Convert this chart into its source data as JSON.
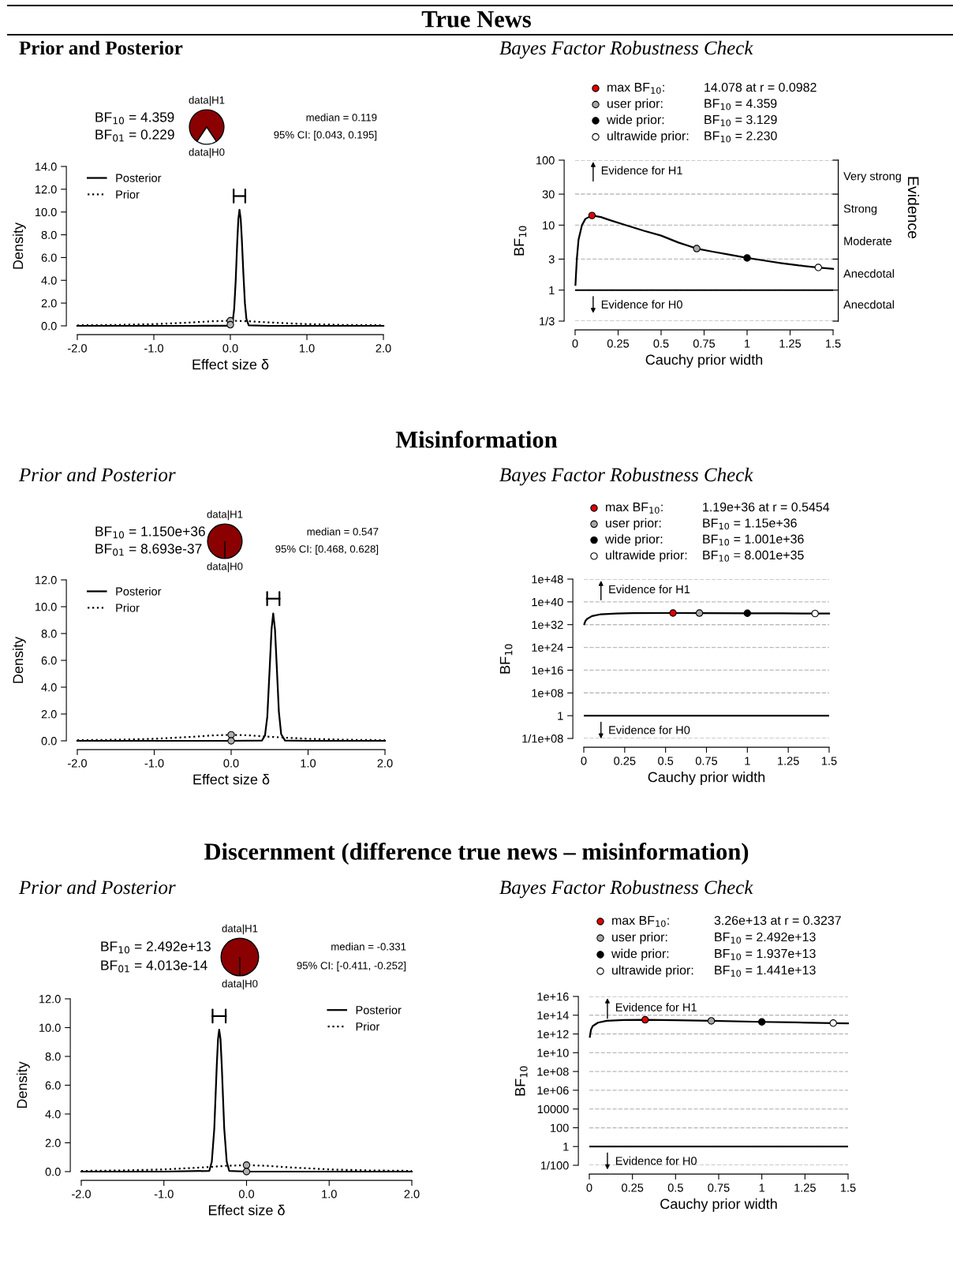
{
  "chart_data": [
    {
      "type": "other",
      "title": "True News"
    },
    {
      "type": "line",
      "title": "Prior and Posterior",
      "xlabel": "Effect size δ",
      "ylabel": "Density",
      "xlim": [
        -2,
        2
      ],
      "ylim": [
        0,
        14
      ],
      "xticks": [
        {
          "value": -2,
          "label": "-2.0"
        },
        {
          "value": -1,
          "label": "-1.0"
        },
        {
          "value": 0,
          "label": "0.0"
        },
        {
          "value": 1,
          "label": "1.0"
        },
        {
          "value": 2,
          "label": "2.0"
        }
      ],
      "yticks": [
        {
          "value": 0,
          "label": "0.0"
        },
        {
          "value": 2,
          "label": "2.0"
        },
        {
          "value": 4,
          "label": "4.0"
        },
        {
          "value": 6,
          "label": "6.0"
        },
        {
          "value": 8,
          "label": "8.0"
        },
        {
          "value": 10,
          "label": "10.0"
        },
        {
          "value": 12,
          "label": "12.0"
        },
        {
          "value": 14,
          "label": "14.0"
        }
      ],
      "legend": "top left",
      "grid": false,
      "annotations": [
        "BF$_{10}$ = 4.359",
        "BF$_{01}$ = 0.229",
        "median = 0.119",
        "95% CI: [0.043, 0.195]"
      ],
      "series": [
        {
          "name": "Posterior",
          "type": "line",
          "line_style": "solid",
          "color": "#000000",
          "x": [
            -2,
            -1,
            -0.5,
            0,
            0.03,
            0.05,
            0.07,
            0.09,
            0.105,
            0.119,
            0.135,
            0.15,
            0.17,
            0.19,
            0.21,
            0.24,
            0.5,
            1,
            2
          ],
          "values": [
            0,
            0,
            0,
            0.01,
            0.35,
            1.5,
            4.0,
            7.4,
            9.4,
            10.2,
            9.4,
            7.6,
            4.6,
            2.0,
            0.6,
            0.05,
            0,
            0,
            0
          ]
        },
        {
          "name": "Prior",
          "type": "line",
          "line_style": "dotted",
          "color": "#000000",
          "x": [
            -2,
            -1.5,
            -1,
            -0.5,
            -0.25,
            0,
            0.25,
            0.5,
            1,
            1.5,
            2
          ],
          "values": [
            0.05,
            0.08,
            0.15,
            0.3,
            0.4,
            0.45,
            0.4,
            0.3,
            0.15,
            0.08,
            0.05
          ]
        },
        {
          "type": "scatter",
          "marker": "circle",
          "color": "#b0b0b0",
          "x": [
            0,
            0
          ],
          "values": [
            0.45,
            0.1
          ]
        },
        {
          "type": "line",
          "marker": "none",
          "color": "#000000",
          "x": [
            0.043,
            0.195
          ],
          "values": [
            11.4,
            11.4
          ]
        }
      ]
    },
    {
      "type": "pie",
      "categories": [
        "data|H1",
        "data|H0"
      ],
      "values": [
        81.3,
        18.7
      ],
      "colors": [
        "#8b0000",
        "#ffffff"
      ]
    },
    {
      "type": "line",
      "log": "y",
      "title": "Bayes Factor Robustness Check",
      "xlabel": "Cauchy prior width",
      "ylabel": "BF$_{10}$",
      "y2label": "Evidence",
      "xlim": [
        0,
        1.5
      ],
      "ylim": [
        0.3333,
        100
      ],
      "xticks": [
        0,
        0.25,
        0.5,
        0.75,
        1,
        1.25,
        1.5
      ],
      "yticks": [
        {
          "value": 0.3333,
          "label": "1/3"
        },
        1,
        3,
        10,
        30,
        100
      ],
      "grid": "y",
      "legend": "top",
      "ref_lines": [
        {
          "axis": "y",
          "value": 1,
          "color": "#000000"
        }
      ],
      "annotations": [
        "Evidence for H1",
        "Evidence for H0",
        "14.078 at r = 0.0982",
        "BF$_{10}$ = 4.359",
        "BF$_{10}$ = 3.129",
        "BF$_{10}$ = 2.230",
        "Anecdotal",
        "Anecdotal",
        "Moderate",
        "Strong",
        "Very strong"
      ],
      "series": [
        {
          "type": "line",
          "color": "#000000",
          "x": [
            0.002,
            0.01,
            0.02,
            0.04,
            0.06,
            0.0982,
            0.15,
            0.2,
            0.3,
            0.4,
            0.5,
            0.6,
            0.707,
            0.8,
            0.9,
            1,
            1.1,
            1.2,
            1.3,
            1.414,
            1.5
          ],
          "values": [
            1.2,
            3,
            6,
            10,
            12.5,
            14.078,
            13.3,
            12.0,
            9.9,
            8.2,
            6.9,
            5.4,
            4.359,
            3.9,
            3.5,
            3.129,
            2.85,
            2.6,
            2.4,
            2.23,
            2.12
          ]
        },
        {
          "name": "max BF$_{10}$:",
          "type": "scatter",
          "color": "#e00000",
          "x": [
            0.0982
          ],
          "values": [
            14.078
          ]
        },
        {
          "name": "user prior:",
          "type": "scatter",
          "color": "#a8a8a8",
          "x": [
            0.707
          ],
          "values": [
            4.359
          ]
        },
        {
          "name": "wide prior:",
          "type": "scatter",
          "color": "#000000",
          "x": [
            1
          ],
          "values": [
            3.129
          ]
        },
        {
          "name": "ultrawide prior:",
          "type": "scatter",
          "color": "#ffffff",
          "x": [
            1.414
          ],
          "values": [
            2.23
          ]
        }
      ]
    },
    {
      "type": "other",
      "title": "Misinformation"
    },
    {
      "type": "line",
      "title": "Prior and Posterior",
      "xlabel": "Effect size δ",
      "ylabel": "Density",
      "xlim": [
        -2,
        2
      ],
      "ylim": [
        0,
        12
      ],
      "xticks": [
        {
          "value": -2,
          "label": "-2.0"
        },
        {
          "value": -1,
          "label": "-1.0"
        },
        {
          "value": 0,
          "label": "0.0"
        },
        {
          "value": 1,
          "label": "1.0"
        },
        {
          "value": 2,
          "label": "2.0"
        }
      ],
      "yticks": [
        {
          "value": 0,
          "label": "0.0"
        },
        {
          "value": 2,
          "label": "2.0"
        },
        {
          "value": 4,
          "label": "4.0"
        },
        {
          "value": 6,
          "label": "6.0"
        },
        {
          "value": 8,
          "label": "8.0"
        },
        {
          "value": 10,
          "label": "10.0"
        },
        {
          "value": 12,
          "label": "12.0"
        }
      ],
      "legend": "top left",
      "grid": false,
      "annotations": [
        "BF$_{10}$ = 1.150e+36",
        "BF$_{01}$ = 8.693e-37",
        "median = 0.547",
        "95% CI: [0.468, 0.628]"
      ],
      "series": [
        {
          "name": "Posterior",
          "type": "line",
          "line_style": "solid",
          "color": "#000000",
          "x": [
            -2,
            0,
            0.4,
            0.44,
            0.47,
            0.5,
            0.525,
            0.547,
            0.57,
            0.595,
            0.62,
            0.65,
            0.7,
            1,
            2
          ],
          "values": [
            0,
            0,
            0.02,
            0.4,
            1.8,
            5.3,
            8.3,
            9.5,
            8.3,
            5.3,
            2.2,
            0.5,
            0.02,
            0,
            0
          ]
        },
        {
          "name": "Prior",
          "type": "line",
          "line_style": "dotted",
          "color": "#000000",
          "x": [
            -2,
            -1.5,
            -1,
            -0.5,
            -0.25,
            0,
            0.25,
            0.5,
            1,
            1.5,
            2
          ],
          "values": [
            0.05,
            0.08,
            0.15,
            0.3,
            0.4,
            0.45,
            0.4,
            0.3,
            0.15,
            0.08,
            0.05
          ]
        },
        {
          "type": "scatter",
          "marker": "circle",
          "color": "#b0b0b0",
          "x": [
            0,
            0
          ],
          "values": [
            0.45,
            0
          ]
        },
        {
          "type": "line",
          "marker": "none",
          "color": "#000000",
          "x": [
            0.468,
            0.628
          ],
          "values": [
            10.6,
            10.6
          ]
        }
      ]
    },
    {
      "type": "pie",
      "categories": [
        "data|H1",
        "data|H0"
      ],
      "values": [
        100,
        0
      ],
      "colors": [
        "#8b0000",
        "#ffffff"
      ]
    },
    {
      "type": "line",
      "log": "y",
      "title": "Bayes Factor Robustness Check",
      "xlabel": "Cauchy prior width",
      "ylabel": "BF$_{10}$",
      "xlim": [
        0,
        1.5
      ],
      "ylim": [
        1e-08,
        1e+48
      ],
      "xticks": [
        0,
        0.25,
        0.5,
        0.75,
        1,
        1.25,
        1.5
      ],
      "yticks": [
        {
          "value": 1e-08,
          "label": "1/1e+08"
        },
        1,
        {
          "value": 100000000.0,
          "label": "1e+08"
        },
        {
          "value": 1e+16,
          "label": "1e+16"
        },
        {
          "value": 1e+24,
          "label": "1e+24"
        },
        {
          "value": 1e+32,
          "label": "1e+32"
        },
        {
          "value": 1e+40,
          "label": "1e+40"
        },
        {
          "value": 1e+48,
          "label": "1e+48"
        }
      ],
      "grid": "y",
      "legend": "top",
      "ref_lines": [
        {
          "axis": "y",
          "value": 1,
          "color": "#000000"
        }
      ],
      "annotations": [
        "Evidence for H1",
        "Evidence for H0",
        "1.19e+36 at r = 0.5454",
        "BF$_{10}$ = 1.15e+36",
        "BF$_{10}$ = 1.001e+36",
        "BF$_{10}$ = 8.001e+35"
      ],
      "series": [
        {
          "type": "line",
          "color": "#000000",
          "x": [
            0.003,
            0.01,
            0.02,
            0.05,
            0.1,
            0.2,
            0.3,
            0.5454,
            0.707,
            1,
            1.2,
            1.414,
            1.5
          ],
          "values": [
            1.5e+32,
            2e+33,
            1e+34,
            1e+35,
            4e+35,
            8e+35,
            1.05e+36,
            1.19e+36,
            1.15e+36,
            1.001e+36,
            9e+35,
            8.001e+35,
            7.7e+35
          ]
        },
        {
          "name": "max BF$_{10}$:",
          "type": "scatter",
          "color": "#e00000",
          "x": [
            0.5454
          ],
          "values": [
            1.19e+36
          ]
        },
        {
          "name": "user prior:",
          "type": "scatter",
          "color": "#a8a8a8",
          "x": [
            0.707
          ],
          "values": [
            1.15e+36
          ]
        },
        {
          "name": "wide prior:",
          "type": "scatter",
          "color": "#000000",
          "x": [
            1
          ],
          "values": [
            1.001e+36
          ]
        },
        {
          "name": "ultrawide prior:",
          "type": "scatter",
          "color": "#ffffff",
          "x": [
            1.414
          ],
          "values": [
            8.001e+35
          ]
        }
      ]
    },
    {
      "type": "other",
      "title": "Discernment (difference true news – misinformation)"
    },
    {
      "type": "line",
      "title": "Prior and Posterior",
      "xlabel": "Effect size δ",
      "ylabel": "Density",
      "xlim": [
        -2,
        2
      ],
      "ylim": [
        0,
        12
      ],
      "xticks": [
        {
          "value": -2,
          "label": "-2.0"
        },
        {
          "value": -1,
          "label": "-1.0"
        },
        {
          "value": 0,
          "label": "0.0"
        },
        {
          "value": 1,
          "label": "1.0"
        },
        {
          "value": 2,
          "label": "2.0"
        }
      ],
      "yticks": [
        {
          "value": 0,
          "label": "0.0"
        },
        {
          "value": 2,
          "label": "2.0"
        },
        {
          "value": 4,
          "label": "4.0"
        },
        {
          "value": 6,
          "label": "6.0"
        },
        {
          "value": 8,
          "label": "8.0"
        },
        {
          "value": 10,
          "label": "10.0"
        },
        {
          "value": 12,
          "label": "12.0"
        }
      ],
      "legend": "top right",
      "grid": false,
      "annotations": [
        "BF$_{10}$ = 2.492e+13",
        "BF$_{01}$ = 4.013e-14",
        "median = -0.331",
        "95% CI: [-0.411, -0.252]"
      ],
      "series": [
        {
          "name": "Posterior",
          "type": "line",
          "line_style": "solid",
          "color": "#000000",
          "x": [
            -2,
            -1,
            -0.45,
            -0.42,
            -0.39,
            -0.36,
            -0.345,
            -0.331,
            -0.315,
            -0.3,
            -0.27,
            -0.24,
            -0.21,
            0,
            2
          ],
          "values": [
            0,
            0,
            0.05,
            0.7,
            3.0,
            7.4,
            9.2,
            9.86,
            9.2,
            7.4,
            3.0,
            0.7,
            0.05,
            0,
            0
          ]
        },
        {
          "name": "Prior",
          "type": "line",
          "line_style": "dotted",
          "color": "#000000",
          "x": [
            -2,
            -1.5,
            -1,
            -0.5,
            -0.25,
            0,
            0.25,
            0.5,
            1,
            1.5,
            2
          ],
          "values": [
            0.05,
            0.08,
            0.15,
            0.3,
            0.4,
            0.45,
            0.4,
            0.3,
            0.15,
            0.08,
            0.05
          ]
        },
        {
          "type": "scatter",
          "marker": "circle",
          "color": "#b0b0b0",
          "x": [
            0,
            0
          ],
          "values": [
            0.45,
            0
          ]
        },
        {
          "type": "line",
          "marker": "none",
          "color": "#000000",
          "x": [
            -0.411,
            -0.252
          ],
          "values": [
            10.8,
            10.8
          ]
        }
      ]
    },
    {
      "type": "pie",
      "categories": [
        "data|H1",
        "data|H0"
      ],
      "values": [
        100,
        0
      ],
      "colors": [
        "#8b0000",
        "#ffffff"
      ]
    },
    {
      "type": "line",
      "log": "y",
      "title": "Bayes Factor Robustness Check",
      "xlabel": "Cauchy prior width",
      "ylabel": "BF$_{10}$",
      "xlim": [
        0,
        1.5
      ],
      "ylim": [
        0.01,
        1e+16
      ],
      "xticks": [
        0,
        0.25,
        0.5,
        0.75,
        1,
        1.25,
        1.5
      ],
      "yticks": [
        {
          "value": 0.01,
          "label": "1/100"
        },
        1,
        100,
        10000,
        {
          "value": 1000000.0,
          "label": "1e+06"
        },
        {
          "value": 100000000.0,
          "label": "1e+08"
        },
        {
          "value": 10000000000.0,
          "label": "1e+10"
        },
        {
          "value": 1000000000000.0,
          "label": "1e+12"
        },
        {
          "value": 100000000000000.0,
          "label": "1e+14"
        },
        {
          "value": 1e+16,
          "label": "1e+16"
        }
      ],
      "grid": "y",
      "legend": "top",
      "ref_lines": [
        {
          "axis": "y",
          "value": 1,
          "color": "#000000"
        }
      ],
      "annotations": [
        "Evidence for H1",
        "Evidence for H0",
        "3.26e+13 at r = 0.3237",
        "BF$_{10}$ = 2.492e+13",
        "BF$_{10}$ = 1.937e+13",
        "BF$_{10}$ = 1.441e+13"
      ],
      "series": [
        {
          "type": "line",
          "color": "#000000",
          "x": [
            0.003,
            0.01,
            0.02,
            0.05,
            0.1,
            0.2,
            0.3237,
            0.5,
            0.707,
            1,
            1.2,
            1.414,
            1.5
          ],
          "values": [
            500000000000.0,
            3000000000000.0,
            7000000000000.0,
            16000000000000.0,
            25000000000000.0,
            31000000000000.0,
            32600000000000.0,
            29000000000000.0,
            24920000000000.0,
            19370000000000.0,
            17000000000000.0,
            14410000000000.0,
            13600000000000.0
          ]
        },
        {
          "name": "max BF$_{10}$:",
          "type": "scatter",
          "color": "#e00000",
          "x": [
            0.3237
          ],
          "values": [
            32600000000000.0
          ]
        },
        {
          "name": "user prior:",
          "type": "scatter",
          "color": "#a8a8a8",
          "x": [
            0.707
          ],
          "values": [
            24920000000000.0
          ]
        },
        {
          "name": "wide prior:",
          "type": "scatter",
          "color": "#000000",
          "x": [
            1
          ],
          "values": [
            19370000000000.0
          ]
        },
        {
          "name": "ultrawide prior:",
          "type": "scatter",
          "color": "#ffffff",
          "x": [
            1.414
          ],
          "values": [
            14410000000000.0
          ]
        }
      ]
    }
  ]
}
